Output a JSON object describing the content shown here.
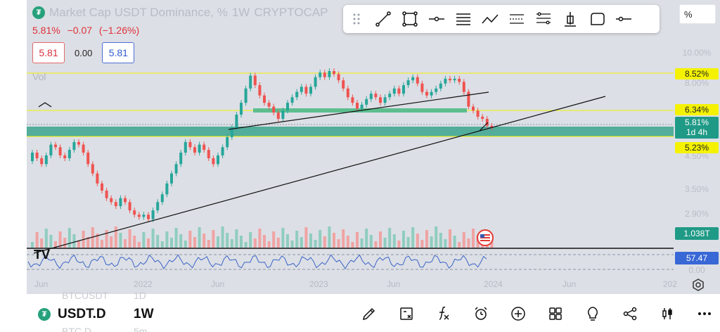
{
  "title": "Market Cap USDT Dominance, %",
  "interval": "1W",
  "exchange": "CRYPTOCAP",
  "ohlc": {
    "last": "5.81%",
    "change": "−0.07",
    "change_pct": "(−1.26%)"
  },
  "inputs": {
    "sell": "5.81",
    "spread": "0.00",
    "buy": "5.81"
  },
  "vol_label": "Vol",
  "percent_button": "%",
  "price_labels": [
    "10.00%",
    "8.00%",
    "4.50%",
    "3.50%",
    "2.90%",
    "0.00"
  ],
  "badges": {
    "level_high": "8.52%",
    "level_mid": "6.34%",
    "current": "5.81%",
    "countdown": "1d 4h",
    "level_low": "5.23%",
    "volume": "1.038T",
    "indicator": "57.47"
  },
  "time_labels": [
    "Jun",
    "2022",
    "Jun",
    "2023",
    "Jun",
    "2024",
    "Jun",
    "202"
  ],
  "bottom": {
    "symbol": "USDT.D",
    "interval": "1W",
    "ghost_top_symbol": "BTCUSDT",
    "ghost_top_interval": "1D",
    "ghost_bottom_symbol": "BTC.D",
    "ghost_bottom_interval": "5m"
  },
  "toolbar_icons": [
    "drag-handle-icon",
    "trendline-icon",
    "rectangle-icon",
    "horizontal-ray-icon",
    "lines-icon",
    "path-icon",
    "parallel-channel-icon",
    "fib-icon",
    "anchor-icon",
    "callout-icon",
    "horizontal-line-icon"
  ],
  "bottom_icons": [
    "brush-icon",
    "calculator-icon",
    "indicators-icon",
    "alert-icon",
    "add-icon",
    "layouts-icon",
    "ideas-icon",
    "share-icon",
    "candle-type-icon",
    "more-icon"
  ],
  "colors": {
    "up": "#26a69a",
    "down": "#ef5350",
    "zone": "#3aa58e",
    "level": "#f4f200",
    "rsi": "#3a63c8"
  },
  "chart_data": {
    "type": "candlestick",
    "title": "Market Cap USDT Dominance, %",
    "y_scale": "log",
    "ylim": [
      2.7,
      10.5
    ],
    "candles": [
      [
        4.5,
        4.8
      ],
      [
        4.8,
        4.6
      ],
      [
        4.6,
        4.4
      ],
      [
        4.4,
        4.7
      ],
      [
        4.7,
        5.1
      ],
      [
        5.1,
        5.0
      ],
      [
        5.0,
        4.7
      ],
      [
        4.7,
        4.6
      ],
      [
        4.6,
        4.9
      ],
      [
        4.9,
        5.2
      ],
      [
        5.2,
        5.1
      ],
      [
        5.1,
        4.8
      ],
      [
        4.8,
        4.4
      ],
      [
        4.4,
        4.1
      ],
      [
        4.1,
        3.8
      ],
      [
        3.8,
        3.6
      ],
      [
        3.6,
        3.4
      ],
      [
        3.4,
        3.3
      ],
      [
        3.3,
        3.2
      ],
      [
        3.2,
        3.4
      ],
      [
        3.4,
        3.3
      ],
      [
        3.3,
        3.1
      ],
      [
        3.1,
        3.0
      ],
      [
        3.0,
        2.95
      ],
      [
        2.95,
        3.0
      ],
      [
        3.0,
        2.9
      ],
      [
        2.9,
        3.1
      ],
      [
        3.1,
        3.3
      ],
      [
        3.3,
        3.5
      ],
      [
        3.5,
        3.8
      ],
      [
        3.8,
        4.1
      ],
      [
        4.1,
        4.4
      ],
      [
        4.4,
        4.8
      ],
      [
        4.8,
        5.2
      ],
      [
        5.2,
        5.0
      ],
      [
        5.0,
        4.8
      ],
      [
        4.8,
        5.1
      ],
      [
        5.1,
        4.9
      ],
      [
        4.9,
        4.6
      ],
      [
        4.6,
        4.4
      ],
      [
        4.4,
        4.7
      ],
      [
        4.7,
        5.0
      ],
      [
        5.0,
        5.4
      ],
      [
        5.4,
        5.8
      ],
      [
        5.8,
        6.4
      ],
      [
        6.4,
        7.0
      ],
      [
        7.0,
        7.8
      ],
      [
        7.8,
        8.6
      ],
      [
        8.6,
        8.0
      ],
      [
        8.0,
        7.4
      ],
      [
        7.4,
        7.0
      ],
      [
        7.0,
        6.8
      ],
      [
        6.8,
        6.5
      ],
      [
        6.5,
        6.2
      ],
      [
        6.2,
        6.6
      ],
      [
        6.6,
        7.0
      ],
      [
        7.0,
        7.3
      ],
      [
        7.3,
        7.6
      ],
      [
        7.6,
        7.9
      ],
      [
        7.9,
        7.5
      ],
      [
        7.5,
        7.9
      ],
      [
        7.9,
        8.5
      ],
      [
        8.5,
        8.8
      ],
      [
        8.8,
        8.5
      ],
      [
        8.5,
        8.9
      ],
      [
        8.9,
        8.7
      ],
      [
        8.7,
        8.3
      ],
      [
        8.3,
        7.8
      ],
      [
        7.8,
        7.3
      ],
      [
        7.3,
        7.0
      ],
      [
        7.0,
        6.7
      ],
      [
        6.7,
        6.9
      ],
      [
        6.9,
        7.2
      ],
      [
        7.2,
        7.5
      ],
      [
        7.5,
        7.3
      ],
      [
        7.3,
        7.0
      ],
      [
        7.0,
        7.3
      ],
      [
        7.3,
        7.5
      ],
      [
        7.5,
        7.8
      ],
      [
        7.8,
        7.5
      ],
      [
        7.5,
        8.0
      ],
      [
        8.0,
        8.3
      ],
      [
        8.3,
        8.5
      ],
      [
        8.5,
        8.1
      ],
      [
        8.1,
        7.6
      ],
      [
        7.6,
        7.4
      ],
      [
        7.4,
        7.6
      ],
      [
        7.6,
        7.8
      ],
      [
        7.8,
        8.1
      ],
      [
        8.1,
        8.4
      ],
      [
        8.4,
        8.3
      ],
      [
        8.3,
        8.4
      ],
      [
        8.4,
        8.2
      ],
      [
        8.2,
        7.6
      ],
      [
        7.6,
        6.8
      ],
      [
        6.8,
        6.6
      ],
      [
        6.6,
        6.3
      ],
      [
        6.3,
        6.2
      ],
      [
        6.2,
        5.88
      ],
      [
        5.88,
        5.81
      ]
    ]
  }
}
